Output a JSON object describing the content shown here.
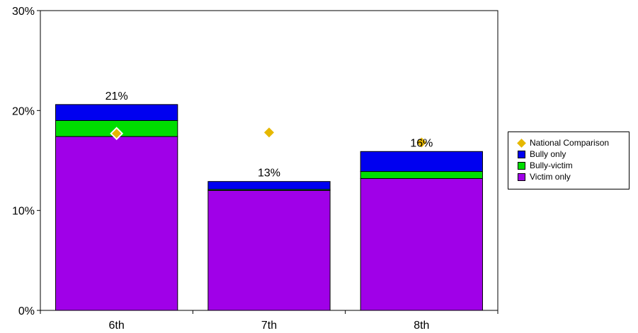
{
  "chart_data": {
    "type": "bar",
    "stacked": true,
    "title": "",
    "xlabel": "",
    "ylabel": "",
    "ylim": [
      0,
      30
    ],
    "y_ticks": [
      "0%",
      "10%",
      "20%",
      "30%"
    ],
    "categories": [
      "6th",
      "7th",
      "8th"
    ],
    "series": [
      {
        "name": "Victim only",
        "color": "#a000e8",
        "values": [
          17.4,
          12.0,
          13.2
        ]
      },
      {
        "name": "Bully-victim",
        "color": "#00dd00",
        "values": [
          1.6,
          0.1,
          0.7
        ]
      },
      {
        "name": "Bully only",
        "color": "#0000f0",
        "values": [
          1.6,
          0.8,
          2.0
        ]
      }
    ],
    "totals_labels": [
      "21%",
      "13%",
      "16%"
    ],
    "national_comparison": {
      "name": "National Comparison",
      "color": "#e6b800",
      "values": [
        17.7,
        17.8,
        16.8
      ]
    },
    "grid": false,
    "legend_position": "right",
    "legend_entries": [
      "National Comparison",
      "Bully only",
      "Bully-victim",
      "Victim only"
    ]
  }
}
